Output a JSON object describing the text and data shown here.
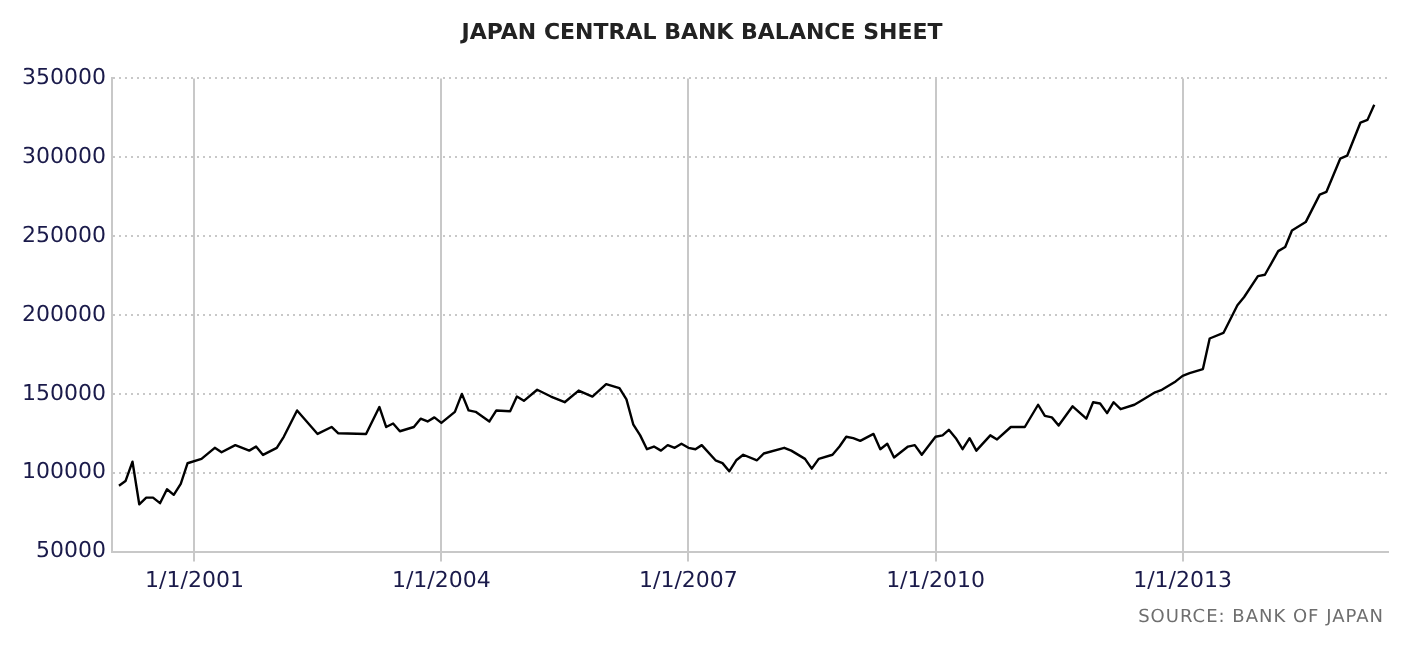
{
  "chart_data": {
    "type": "line",
    "title": "JAPAN CENTRAL BANK BALANCE SHEET",
    "x": [
      "2000-02",
      "2000-03",
      "2000-04",
      "2000-05",
      "2000-06",
      "2000-07",
      "2000-08",
      "2000-09",
      "2000-10",
      "2000-11",
      "2000-12",
      "2001-02",
      "2001-04",
      "2001-05",
      "2001-07",
      "2001-09",
      "2001-10",
      "2001-11",
      "2002-01",
      "2002-02",
      "2002-04",
      "2002-07",
      "2002-09",
      "2002-10",
      "2003-02",
      "2003-04",
      "2003-05",
      "2003-06",
      "2003-07",
      "2003-09",
      "2003-10",
      "2003-11",
      "2003-12",
      "2004-01",
      "2004-03",
      "2004-04",
      "2004-05",
      "2004-06",
      "2004-08",
      "2004-09",
      "2004-11",
      "2004-12",
      "2005-01",
      "2005-03",
      "2005-05",
      "2005-07",
      "2005-09",
      "2005-11",
      "2006-01",
      "2006-03",
      "2006-04",
      "2006-05",
      "2006-06",
      "2006-07",
      "2006-08",
      "2006-09",
      "2006-10",
      "2006-11",
      "2006-12",
      "2007-01",
      "2007-02",
      "2007-03",
      "2007-05",
      "2007-06",
      "2007-07",
      "2007-08",
      "2007-09",
      "2007-11",
      "2007-12",
      "2008-03",
      "2008-04",
      "2008-06",
      "2008-07",
      "2008-08",
      "2008-10",
      "2008-11",
      "2008-12",
      "2009-01",
      "2009-02",
      "2009-04",
      "2009-05",
      "2009-06",
      "2009-07",
      "2009-09",
      "2009-10",
      "2009-11",
      "2010-01",
      "2010-02",
      "2010-03",
      "2010-04",
      "2010-05",
      "2010-06",
      "2010-07",
      "2010-09",
      "2010-10",
      "2010-12",
      "2011-02",
      "2011-04",
      "2011-05",
      "2011-06",
      "2011-07",
      "2011-09",
      "2011-11",
      "2011-12",
      "2012-01",
      "2012-02",
      "2012-03",
      "2012-04",
      "2012-06",
      "2012-07",
      "2012-09",
      "2012-10",
      "2012-12",
      "2013-01",
      "2013-02",
      "2013-04",
      "2013-05",
      "2013-07",
      "2013-09",
      "2013-10",
      "2013-12",
      "2014-01",
      "2014-03",
      "2014-04",
      "2014-05",
      "2014-07",
      "2014-09",
      "2014-10",
      "2014-12",
      "2015-01",
      "2015-03",
      "2015-04",
      "2015-05"
    ],
    "series": [
      {
        "color": "#000000",
        "values": [
          91700,
          94700,
          107000,
          80000,
          84200,
          84200,
          80700,
          89500,
          86000,
          93000,
          106000,
          108800,
          115800,
          113000,
          117500,
          114000,
          116600,
          111300,
          115800,
          122800,
          139500,
          124600,
          129000,
          125000,
          124600,
          141700,
          129000,
          131200,
          126300,
          129000,
          134300,
          132500,
          135100,
          131600,
          138600,
          150000,
          139500,
          138600,
          132500,
          139500,
          139000,
          148300,
          145600,
          152600,
          148300,
          144700,
          152100,
          148300,
          156200,
          153600,
          146500,
          130700,
          123700,
          114900,
          116600,
          114000,
          117500,
          115800,
          118400,
          115800,
          114900,
          117500,
          107900,
          106100,
          100900,
          107900,
          111400,
          107900,
          112200,
          115800,
          114000,
          108800,
          102600,
          108800,
          111400,
          116600,
          122800,
          121900,
          120200,
          124600,
          114900,
          118400,
          109700,
          116600,
          117500,
          111400,
          122800,
          123700,
          127200,
          121900,
          114900,
          121900,
          114000,
          123700,
          121100,
          129000,
          129000,
          143100,
          136000,
          135100,
          129900,
          142100,
          134300,
          144700,
          143900,
          137800,
          144700,
          140300,
          143100,
          145600,
          151000,
          152600,
          157900,
          161400,
          163100,
          165700,
          185100,
          188600,
          206200,
          211400,
          224600,
          225500,
          240500,
          243100,
          253600,
          258900,
          276300,
          278100,
          299100,
          301000,
          322000,
          323700,
          333300
        ]
      }
    ],
    "xlim": [
      "2000-01",
      "2015-07"
    ],
    "xticks": [
      {
        "value": "2001-01-01",
        "label": "1/1/2001"
      },
      {
        "value": "2004-01-01",
        "label": "1/1/2004"
      },
      {
        "value": "2007-01-01",
        "label": "1/1/2007"
      },
      {
        "value": "2010-01-01",
        "label": "1/1/2010"
      },
      {
        "value": "2013-01-01",
        "label": "1/1/2013"
      }
    ],
    "ylim": [
      50000,
      350000
    ],
    "yticks": [
      50000,
      100000,
      150000,
      200000,
      250000,
      300000,
      350000
    ],
    "grid": true,
    "line_style": "solid",
    "marker": "none",
    "annotations": [
      "SOURCE: BANK OF JAPAN"
    ]
  }
}
